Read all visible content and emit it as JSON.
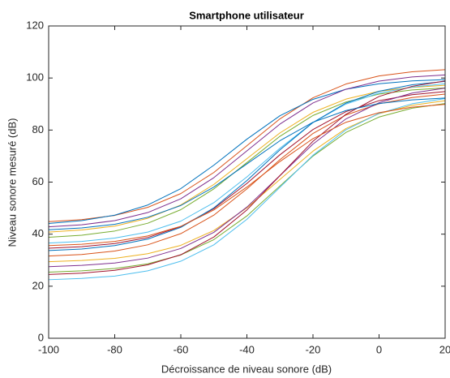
{
  "chart_data": {
    "type": "line",
    "title": "Smartphone utilisateur",
    "x_label": "Décroissance de niveau sonore (dB)",
    "y_label": "Niveau sonore mesuré (dB)",
    "x": [
      -100,
      -90,
      -80,
      -70,
      -60,
      -50,
      -40,
      -30,
      -20,
      -10,
      0,
      10,
      20
    ],
    "xlim": [
      -100,
      20
    ],
    "xticks": [
      -100,
      -80,
      -60,
      -40,
      -20,
      0,
      20
    ],
    "ylim": [
      0,
      120
    ],
    "yticks": [
      0,
      20,
      40,
      60,
      80,
      100,
      120
    ],
    "series": [
      {
        "color": "#D95319",
        "values": [
          44.8,
          45.6,
          47.2,
          50.3,
          55.6,
          63.7,
          74,
          84.3,
          92.4,
          97.7,
          100.8,
          102.4,
          103.2
        ]
      },
      {
        "color": "#0072BD",
        "values": [
          44.1,
          45.2,
          47.3,
          51.2,
          57.5,
          66.5,
          76.5,
          85.5,
          91.8,
          95.7,
          97.8,
          98.9,
          99.4
        ]
      },
      {
        "color": "#7E2F8E",
        "values": [
          42.8,
          43.6,
          45.2,
          48.3,
          53.6,
          61.7,
          72,
          82.3,
          90.4,
          95.7,
          98.8,
          100.4,
          101.2
        ]
      },
      {
        "color": "#EDB120",
        "values": [
          40.8,
          41.6,
          43.1,
          46.1,
          51.2,
          59.1,
          69,
          78.9,
          86.8,
          91.9,
          94.9,
          96.4,
          97.2
        ]
      },
      {
        "color": "#77AC30",
        "values": [
          38.8,
          39.6,
          41.2,
          44.2,
          49.4,
          57.4,
          67.5,
          77.6,
          85.6,
          90.8,
          93.8,
          95.4,
          96.2
        ]
      },
      {
        "color": "#4DBEEE",
        "values": [
          36.6,
          37.2,
          38.5,
          40.8,
          45,
          52.1,
          62,
          73,
          82.9,
          90,
          94.2,
          96.5,
          97.8
        ]
      },
      {
        "color": "#A2142F",
        "values": [
          34.6,
          35.2,
          36.4,
          38.7,
          42.9,
          49.8,
          59.5,
          70.5,
          80.2,
          87.1,
          91.3,
          93.6,
          94.8
        ]
      },
      {
        "color": "#0072BD",
        "values": [
          33.7,
          34.3,
          35.6,
          38.1,
          42.6,
          50.1,
          60.6,
          72.4,
          82.9,
          90.4,
          94.9,
          97.4,
          98.7
        ]
      },
      {
        "color": "#D95319",
        "values": [
          31.6,
          32.2,
          33.5,
          35.9,
          40.2,
          47.3,
          57.4,
          68.6,
          78.7,
          85.8,
          90.1,
          92.5,
          93.8
        ]
      },
      {
        "color": "#EDB120",
        "values": [
          29.4,
          29.9,
          30.7,
          32.5,
          35.7,
          41.4,
          50.1,
          61,
          71.9,
          80.6,
          86.3,
          89.5,
          91.3
        ]
      },
      {
        "color": "#7E2F8E",
        "values": [
          27.5,
          28,
          28.9,
          30.8,
          34.5,
          40.7,
          50.4,
          62.5,
          74.6,
          84.3,
          90.5,
          94.2,
          96.1
        ]
      },
      {
        "color": "#77AC30",
        "values": [
          25.4,
          25.9,
          26.8,
          28.6,
          32,
          37.9,
          47,
          58.5,
          70,
          79.1,
          85,
          88.4,
          90.2
        ]
      },
      {
        "color": "#4DBEEE",
        "values": [
          22.5,
          23,
          23.9,
          25.9,
          29.6,
          35.9,
          45.7,
          58,
          70.3,
          80.1,
          86.4,
          90.1,
          92.1
        ]
      },
      {
        "color": "#A2142F",
        "values": [
          24.5,
          25,
          26.1,
          28.2,
          32.1,
          38.9,
          49.3,
          62.5,
          75.7,
          86.1,
          92.9,
          96.8,
          98.9
        ]
      },
      {
        "color": "#0072BD",
        "values": [
          41.7,
          42.4,
          43.8,
          46.5,
          51,
          58.1,
          67,
          75.9,
          83,
          87.5,
          90.2,
          91.6,
          92.3
        ]
      },
      {
        "color": "#D95319",
        "values": [
          35.6,
          36.1,
          37.2,
          39.3,
          43,
          49.3,
          58.1,
          67.9,
          76.7,
          83,
          86.7,
          88.8,
          89.9
        ]
      }
    ]
  }
}
